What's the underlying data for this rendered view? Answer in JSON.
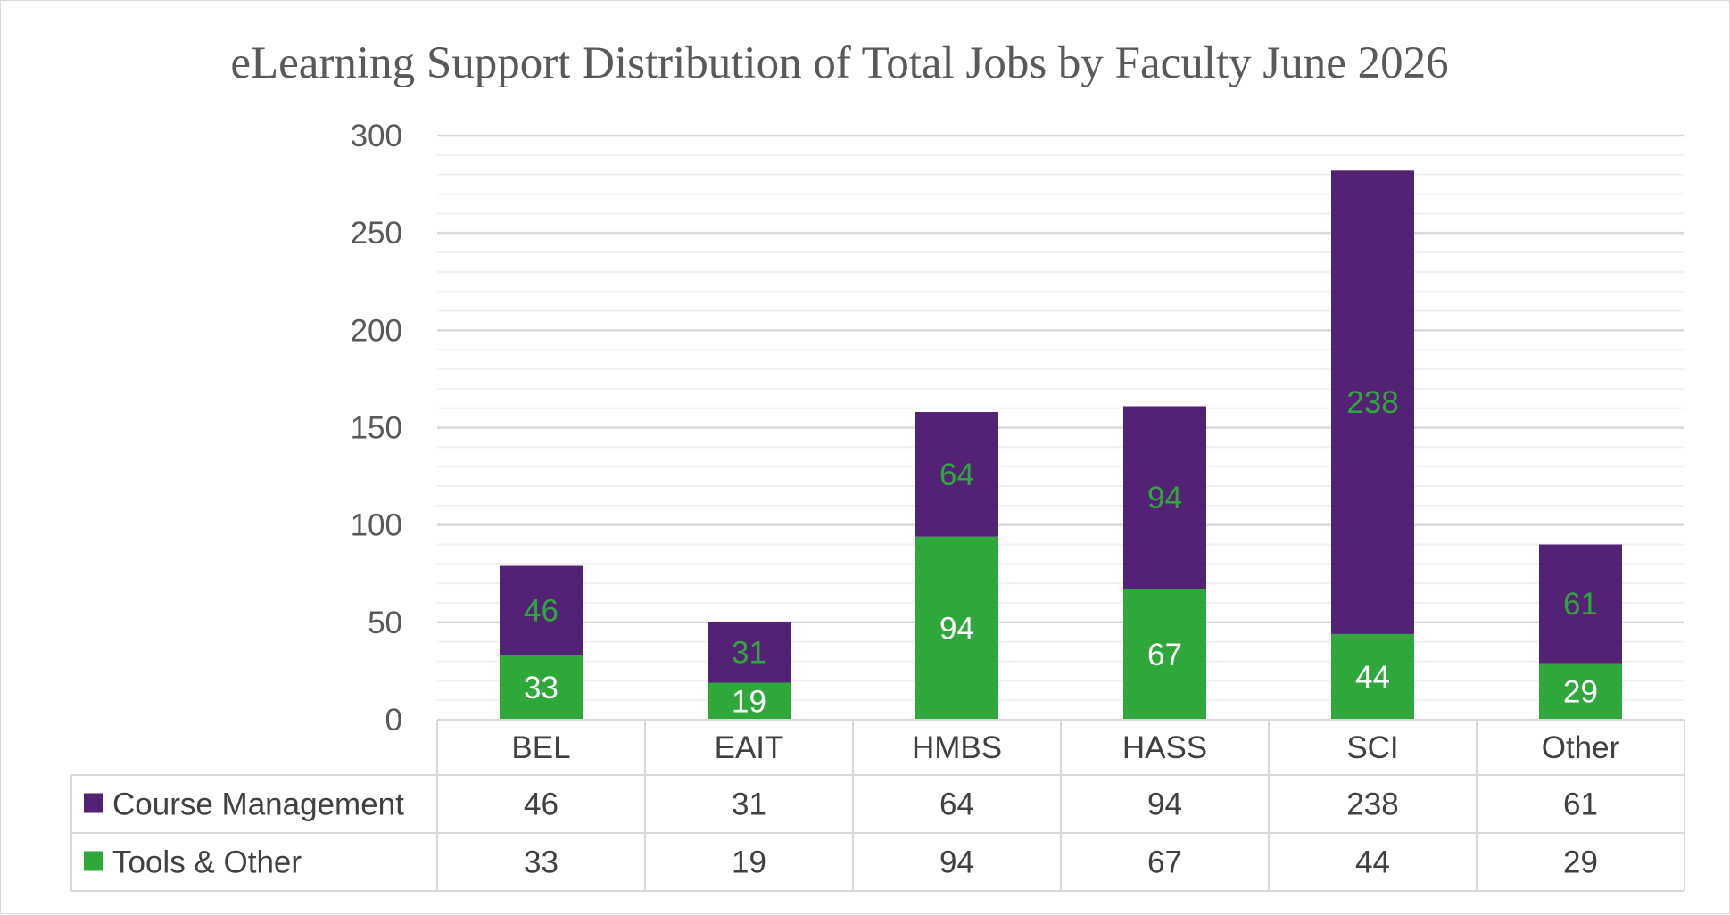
{
  "chart_data": {
    "type": "bar",
    "stacked": true,
    "title": "eLearning Support Distribution of Total Jobs by Faculty June 2026",
    "categories": [
      "BEL",
      "EAIT",
      "HMBS",
      "HASS",
      "SCI",
      "Other"
    ],
    "series": [
      {
        "name": "Tools & Other",
        "color": "#2ea83a",
        "label_color": "#ffffff",
        "values": [
          33,
          19,
          94,
          67,
          44,
          29
        ]
      },
      {
        "name": "Course Management",
        "color": "#532275",
        "label_color": "#2ea83a",
        "values": [
          46,
          31,
          64,
          94,
          238,
          61
        ]
      }
    ],
    "ylim": [
      0,
      300
    ],
    "yticks": [
      "0",
      "50",
      "100",
      "150",
      "200",
      "250",
      "300"
    ],
    "grid": true,
    "legend": "data-table-below",
    "data_table_rows": [
      "Course Management",
      "Tools & Other"
    ]
  }
}
